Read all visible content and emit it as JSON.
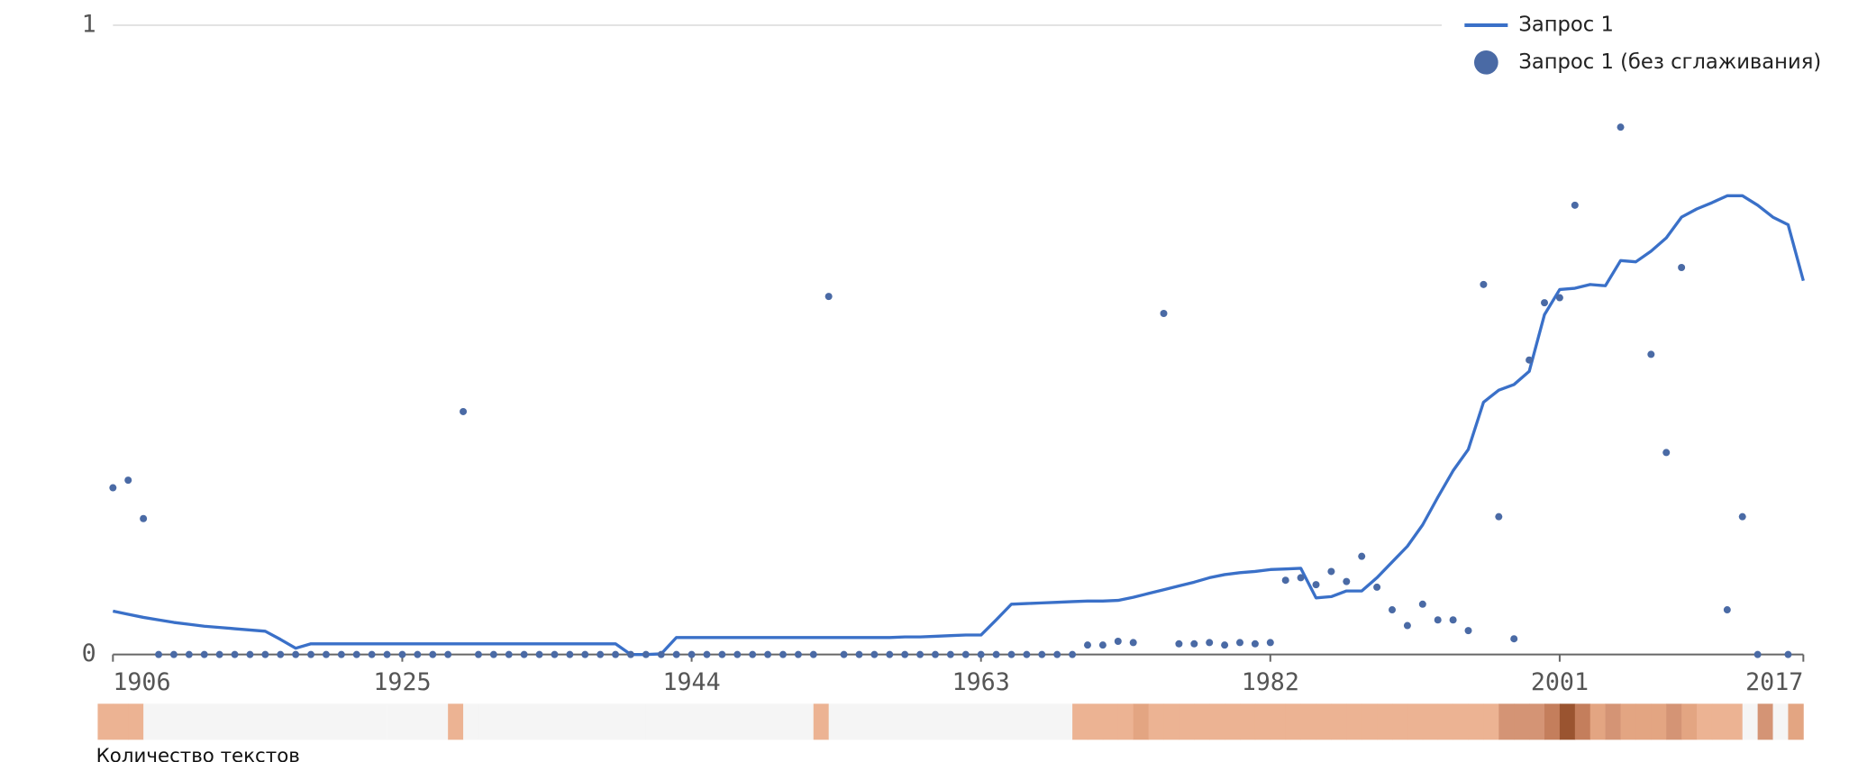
{
  "chart_data": {
    "type": "line",
    "x": [
      1906,
      1907,
      1908,
      1909,
      1910,
      1911,
      1912,
      1913,
      1914,
      1915,
      1916,
      1917,
      1918,
      1919,
      1920,
      1921,
      1922,
      1923,
      1924,
      1925,
      1926,
      1927,
      1928,
      1929,
      1930,
      1931,
      1932,
      1933,
      1934,
      1935,
      1936,
      1937,
      1938,
      1939,
      1940,
      1941,
      1942,
      1943,
      1944,
      1945,
      1946,
      1947,
      1948,
      1949,
      1950,
      1951,
      1952,
      1953,
      1954,
      1955,
      1956,
      1957,
      1958,
      1959,
      1960,
      1961,
      1962,
      1963,
      1964,
      1965,
      1966,
      1967,
      1968,
      1969,
      1970,
      1971,
      1972,
      1973,
      1974,
      1975,
      1976,
      1977,
      1978,
      1979,
      1980,
      1981,
      1982,
      1983,
      1984,
      1985,
      1986,
      1987,
      1988,
      1989,
      1990,
      1991,
      1992,
      1993,
      1994,
      1995,
      1996,
      1997,
      1998,
      1999,
      2000,
      2001,
      2002,
      2003,
      2004,
      2005,
      2006,
      2007,
      2008,
      2009,
      2010,
      2011,
      2012,
      2013,
      2014,
      2015,
      2016,
      2017
    ],
    "series": [
      {
        "name": "Запрос 1",
        "type": "line",
        "color": "#3a70c8",
        "values": [
          0.069,
          0.064,
          0.059,
          0.055,
          0.051,
          0.048,
          0.045,
          0.043,
          0.041,
          0.039,
          0.037,
          0.024,
          0.01,
          0.017,
          0.017,
          0.017,
          0.017,
          0.017,
          0.017,
          0.017,
          0.017,
          0.017,
          0.017,
          0.017,
          0.017,
          0.017,
          0.017,
          0.017,
          0.017,
          0.017,
          0.017,
          0.017,
          0.017,
          0.017,
          0,
          0,
          0.001,
          0.027,
          0.027,
          0.027,
          0.027,
          0.027,
          0.027,
          0.027,
          0.027,
          0.027,
          0.027,
          0.027,
          0.027,
          0.027,
          0.027,
          0.027,
          0.028,
          0.028,
          0.029,
          0.03,
          0.031,
          0.031,
          0.055,
          0.08,
          0.081,
          0.082,
          0.083,
          0.084,
          0.085,
          0.085,
          0.086,
          0.091,
          0.097,
          0.103,
          0.109,
          0.115,
          0.122,
          0.127,
          0.13,
          0.132,
          0.135,
          0.136,
          0.137,
          0.09,
          0.092,
          0.101,
          0.101,
          0.122,
          0.147,
          0.172,
          0.206,
          0.25,
          0.292,
          0.326,
          0.401,
          0.42,
          0.429,
          0.45,
          0.54,
          0.58,
          0.582,
          0.588,
          0.586,
          0.626,
          0.624,
          0.641,
          0.662,
          0.695,
          0.708,
          0.718,
          0.729,
          0.729,
          0.714,
          0.695,
          0.683,
          0.594
        ]
      },
      {
        "name": "Запрос 1 (без сглаживания)",
        "type": "scatter",
        "color": "#4a6aa5",
        "values": [
          0.265,
          0.277,
          0.216,
          0,
          0,
          0,
          0,
          0,
          0,
          0,
          0,
          0,
          0,
          0,
          0,
          0,
          0,
          0,
          0,
          0,
          0,
          0,
          0,
          0.386,
          0,
          0,
          0,
          0,
          0,
          0,
          0,
          0,
          0,
          0,
          0,
          0,
          0,
          0,
          0,
          0,
          0,
          0,
          0,
          0,
          0,
          0,
          0,
          0.569,
          0,
          0,
          0,
          0,
          0,
          0,
          0,
          0,
          0,
          0,
          0,
          0,
          0,
          0,
          0,
          0,
          0.015,
          0.015,
          0.021,
          0.019,
          null,
          0.542,
          0.017,
          0.017,
          0.019,
          0.015,
          0.019,
          0.017,
          0.019,
          0.118,
          0.122,
          0.111,
          0.132,
          0.116,
          0.156,
          0.107,
          0.071,
          0.046,
          0.08,
          0.055,
          0.055,
          0.038,
          0.588,
          0.219,
          0.025,
          0.468,
          0.559,
          0.567,
          0.714,
          null,
          null,
          0.838,
          null,
          0.477,
          0.321,
          0.615,
          null,
          null,
          0.071,
          0.219,
          0,
          null,
          0,
          null
        ]
      }
    ],
    "xlim": [
      1906,
      2017
    ],
    "xticks": [
      1906,
      1925,
      1944,
      1963,
      1982,
      2001,
      2017
    ],
    "ylim": [
      0,
      1
    ],
    "yticks": [
      0,
      1
    ],
    "grid": true,
    "legend": "top-right",
    "strip_label": "Количество текстов",
    "strip_colors": [
      "#ecb393",
      "#ecb393",
      "#ecb393",
      "#f5f5f5",
      "#f5f5f5",
      "#f5f5f5",
      "#f5f5f5",
      "#f5f5f5",
      "#f5f5f5",
      "#f5f5f5",
      "#f5f5f5",
      "#f5f5f5",
      "#f5f5f5",
      "#f5f5f5",
      "#f5f5f5",
      "#f5f5f5",
      "#f5f5f5",
      "#f5f5f5",
      "#f5f5f5",
      "#f5f5f5",
      "#f5f5f5",
      "#f5f5f5",
      "#f5f5f5",
      "#ecb393",
      "#f5f5f5",
      "#f5f5f5",
      "#f5f5f5",
      "#f5f5f5",
      "#f5f5f5",
      "#f5f5f5",
      "#f5f5f5",
      "#f5f5f5",
      "#f5f5f5",
      "#f5f5f5",
      "#f5f5f5",
      "#f5f5f5",
      "#f5f5f5",
      "#f5f5f5",
      "#f5f5f5",
      "#f5f5f5",
      "#f5f5f5",
      "#f5f5f5",
      "#f5f5f5",
      "#f5f5f5",
      "#f5f5f5",
      "#f5f5f5",
      "#f5f5f5",
      "#ecb393",
      "#f5f5f5",
      "#f5f5f5",
      "#f5f5f5",
      "#f5f5f5",
      "#f5f5f5",
      "#f5f5f5",
      "#f5f5f5",
      "#f5f5f5",
      "#f5f5f5",
      "#f5f5f5",
      "#f5f5f5",
      "#f5f5f5",
      "#f5f5f5",
      "#f5f5f5",
      "#f5f5f5",
      "#f5f5f5",
      "#ecb393",
      "#ecb393",
      "#ecb393",
      "#ecb393",
      "#e3a582",
      "#ecb393",
      "#ecb393",
      "#ecb393",
      "#ecb393",
      "#ecb393",
      "#ecb393",
      "#ecb393",
      "#ecb393",
      "#ecb393",
      "#ecb393",
      "#ecb393",
      "#ecb393",
      "#ecb393",
      "#ecb393",
      "#ecb393",
      "#ecb393",
      "#ecb393",
      "#ecb393",
      "#ecb393",
      "#ecb393",
      "#ecb393",
      "#ecb393",
      "#ecb393",
      "#d49475",
      "#d49475",
      "#d49475",
      "#c47e5c",
      "#9a5430",
      "#c47e5c",
      "#e3a582",
      "#d49475",
      "#e3a582",
      "#e3a582",
      "#e3a582",
      "#d49475",
      "#e3a582",
      "#ecb393",
      "#ecb393",
      "#ecb393",
      "#f5f5f5",
      "#d49475",
      "#f5f5f5",
      "#e3a582"
    ]
  }
}
